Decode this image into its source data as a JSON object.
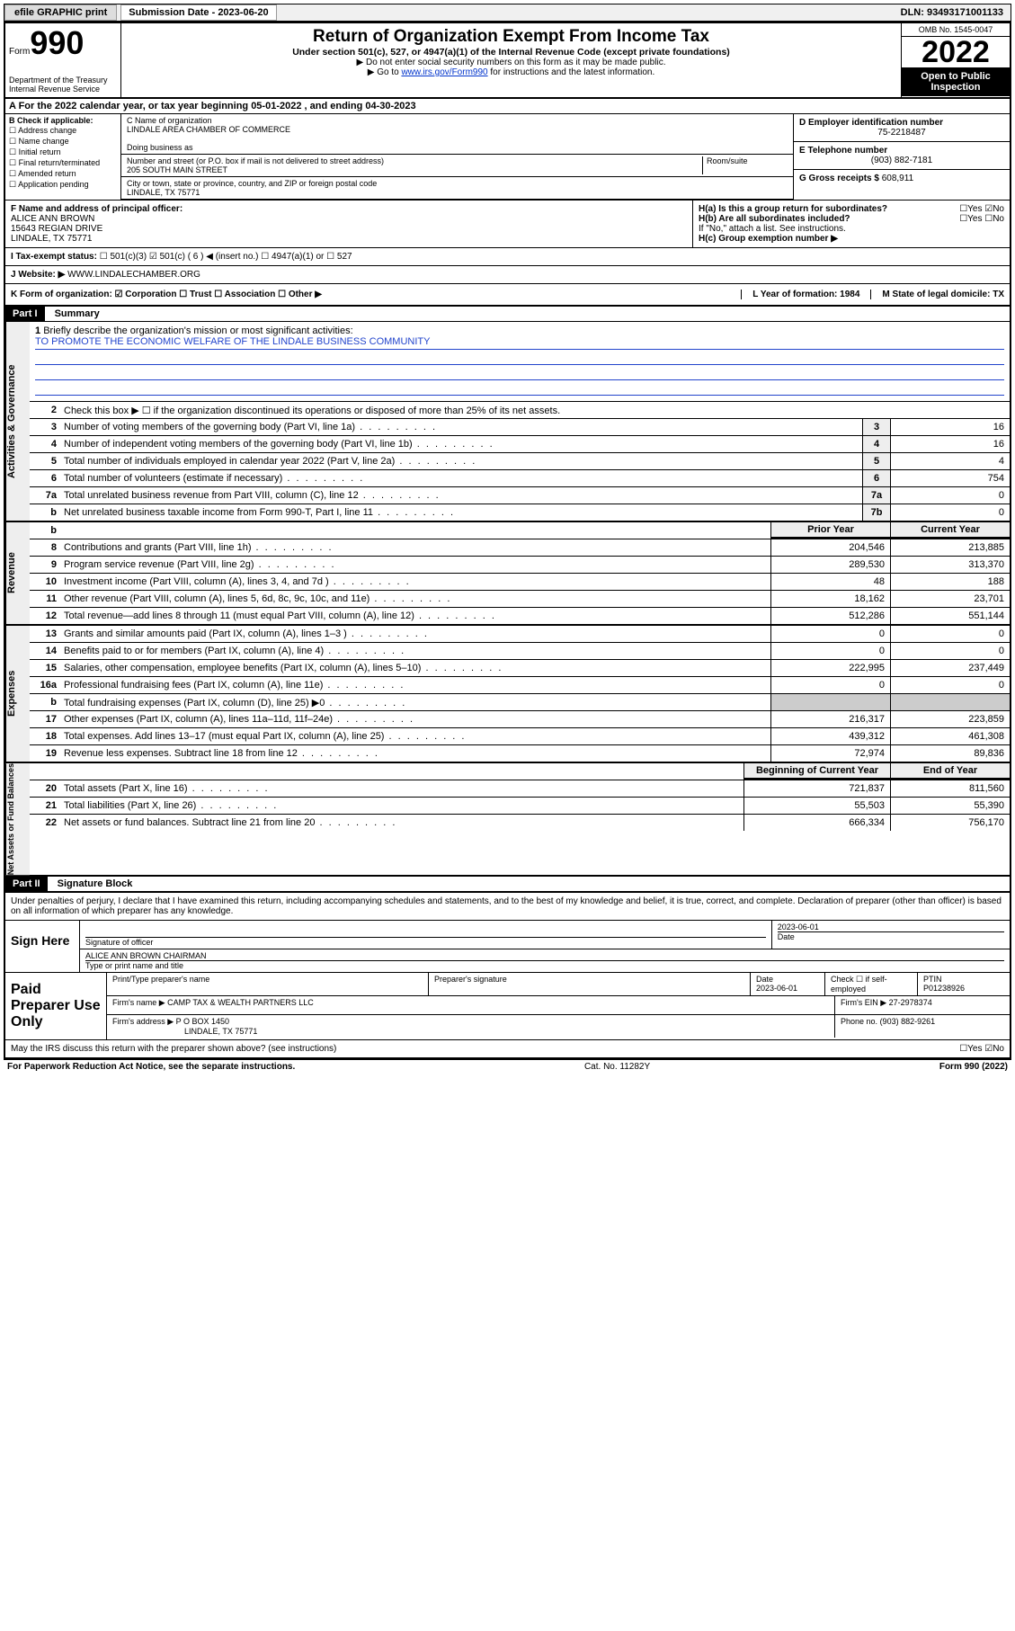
{
  "topbar": {
    "efile": "efile GRAPHIC print",
    "sub_label": "Submission Date - 2023-06-20",
    "dln": "DLN: 93493171001133"
  },
  "header": {
    "form_prefix": "Form",
    "form_no": "990",
    "dept": "Department of the Treasury Internal Revenue Service",
    "title": "Return of Organization Exempt From Income Tax",
    "subtitle": "Under section 501(c), 527, or 4947(a)(1) of the Internal Revenue Code (except private foundations)",
    "instr1": "▶ Do not enter social security numbers on this form as it may be made public.",
    "instr2_pre": "▶ Go to ",
    "instr2_link": "www.irs.gov/Form990",
    "instr2_post": " for instructions and the latest information.",
    "omb": "OMB No. 1545-0047",
    "year": "2022",
    "open": "Open to Public Inspection"
  },
  "row_a": "A For the 2022 calendar year, or tax year beginning 05-01-2022   , and ending 04-30-2023",
  "b": {
    "hdr": "B Check if applicable:",
    "opts": [
      "Address change",
      "Name change",
      "Initial return",
      "Final return/terminated",
      "Amended return",
      "Application pending"
    ]
  },
  "c": {
    "name_lbl": "C Name of organization",
    "name": "LINDALE AREA CHAMBER OF COMMERCE",
    "dba_lbl": "Doing business as",
    "street_lbl": "Number and street (or P.O. box if mail is not delivered to street address)",
    "room_lbl": "Room/suite",
    "street": "205 SOUTH MAIN STREET",
    "city_lbl": "City or town, state or province, country, and ZIP or foreign postal code",
    "city": "LINDALE, TX  75771"
  },
  "d": {
    "lbl": "D Employer identification number",
    "val": "75-2218487"
  },
  "e": {
    "lbl": "E Telephone number",
    "val": "(903) 882-7181"
  },
  "g": {
    "lbl": "G Gross receipts $",
    "val": "608,911"
  },
  "f": {
    "lbl": "F Name and address of principal officer:",
    "name": "ALICE ANN BROWN",
    "addr1": "15643 REGIAN DRIVE",
    "addr2": "LINDALE, TX  75771"
  },
  "h": {
    "ha": "H(a)  Is this a group return for subordinates?",
    "ha_ans": "☐Yes ☑No",
    "hb": "H(b)  Are all subordinates included?",
    "hb_ans": "☐Yes ☐No",
    "hb_note": "If \"No,\" attach a list. See instructions.",
    "hc": "H(c)  Group exemption number ▶"
  },
  "i": {
    "lbl": "I    Tax-exempt status:",
    "opts": "☐ 501(c)(3)   ☑ 501(c) ( 6 ) ◀ (insert no.)   ☐ 4947(a)(1) or   ☐ 527"
  },
  "j": {
    "lbl": "J    Website: ▶",
    "val": "WWW.LINDALECHAMBER.ORG"
  },
  "k": {
    "lbl": "K Form of organization:  ☑ Corporation  ☐ Trust  ☐ Association  ☐ Other ▶",
    "l": "L Year of formation: 1984",
    "m": "M State of legal domicile: TX"
  },
  "part1": {
    "bar": "Part I",
    "title": "Summary"
  },
  "gov": {
    "label": "Activities & Governance",
    "l1_lbl": "Briefly describe the organization's mission or most significant activities:",
    "l1_val": "TO PROMOTE THE ECONOMIC WELFARE OF THE LINDALE BUSINESS COMMUNITY",
    "l2": "Check this box ▶ ☐  if the organization discontinued its operations or disposed of more than 25% of its net assets.",
    "rows": [
      {
        "n": "3",
        "d": "Number of voting members of the governing body (Part VI, line 1a)",
        "b": "3",
        "v": "16"
      },
      {
        "n": "4",
        "d": "Number of independent voting members of the governing body (Part VI, line 1b)",
        "b": "4",
        "v": "16"
      },
      {
        "n": "5",
        "d": "Total number of individuals employed in calendar year 2022 (Part V, line 2a)",
        "b": "5",
        "v": "4"
      },
      {
        "n": "6",
        "d": "Total number of volunteers (estimate if necessary)",
        "b": "6",
        "v": "754"
      },
      {
        "n": "7a",
        "d": "Total unrelated business revenue from Part VIII, column (C), line 12",
        "b": "7a",
        "v": "0"
      },
      {
        "n": "b",
        "d": "Net unrelated business taxable income from Form 990-T, Part I, line 11",
        "b": "7b",
        "v": "0"
      }
    ]
  },
  "rev": {
    "label": "Revenue",
    "hdr_prior": "Prior Year",
    "hdr_curr": "Current Year",
    "rows": [
      {
        "n": "8",
        "d": "Contributions and grants (Part VIII, line 1h)",
        "p": "204,546",
        "c": "213,885"
      },
      {
        "n": "9",
        "d": "Program service revenue (Part VIII, line 2g)",
        "p": "289,530",
        "c": "313,370"
      },
      {
        "n": "10",
        "d": "Investment income (Part VIII, column (A), lines 3, 4, and 7d )",
        "p": "48",
        "c": "188"
      },
      {
        "n": "11",
        "d": "Other revenue (Part VIII, column (A), lines 5, 6d, 8c, 9c, 10c, and 11e)",
        "p": "18,162",
        "c": "23,701"
      },
      {
        "n": "12",
        "d": "Total revenue—add lines 8 through 11 (must equal Part VIII, column (A), line 12)",
        "p": "512,286",
        "c": "551,144"
      }
    ]
  },
  "exp": {
    "label": "Expenses",
    "rows": [
      {
        "n": "13",
        "d": "Grants and similar amounts paid (Part IX, column (A), lines 1–3 )",
        "p": "0",
        "c": "0"
      },
      {
        "n": "14",
        "d": "Benefits paid to or for members (Part IX, column (A), line 4)",
        "p": "0",
        "c": "0"
      },
      {
        "n": "15",
        "d": "Salaries, other compensation, employee benefits (Part IX, column (A), lines 5–10)",
        "p": "222,995",
        "c": "237,449"
      },
      {
        "n": "16a",
        "d": "Professional fundraising fees (Part IX, column (A), line 11e)",
        "p": "0",
        "c": "0"
      },
      {
        "n": "b",
        "d": "Total fundraising expenses (Part IX, column (D), line 25) ▶0",
        "p": "",
        "c": ""
      },
      {
        "n": "17",
        "d": "Other expenses (Part IX, column (A), lines 11a–11d, 11f–24e)",
        "p": "216,317",
        "c": "223,859"
      },
      {
        "n": "18",
        "d": "Total expenses. Add lines 13–17 (must equal Part IX, column (A), line 25)",
        "p": "439,312",
        "c": "461,308"
      },
      {
        "n": "19",
        "d": "Revenue less expenses. Subtract line 18 from line 12",
        "p": "72,974",
        "c": "89,836"
      }
    ]
  },
  "net": {
    "label": "Net Assets or Fund Balances",
    "hdr_beg": "Beginning of Current Year",
    "hdr_end": "End of Year",
    "rows": [
      {
        "n": "20",
        "d": "Total assets (Part X, line 16)",
        "p": "721,837",
        "c": "811,560"
      },
      {
        "n": "21",
        "d": "Total liabilities (Part X, line 26)",
        "p": "55,503",
        "c": "55,390"
      },
      {
        "n": "22",
        "d": "Net assets or fund balances. Subtract line 21 from line 20",
        "p": "666,334",
        "c": "756,170"
      }
    ]
  },
  "part2": {
    "bar": "Part II",
    "title": "Signature Block"
  },
  "sig": {
    "decl": "Under penalties of perjury, I declare that I have examined this return, including accompanying schedules and statements, and to the best of my knowledge and belief, it is true, correct, and complete. Declaration of preparer (other than officer) is based on all information of which preparer has any knowledge.",
    "here": "Sign Here",
    "sig_officer": "Signature of officer",
    "date": "2023-06-01",
    "date_lbl": "Date",
    "name": "ALICE ANN BROWN  CHAIRMAN",
    "name_lbl": "Type or print name and title"
  },
  "paid": {
    "label": "Paid Preparer Use Only",
    "h_name": "Print/Type preparer's name",
    "h_sig": "Preparer's signature",
    "h_date": "Date",
    "date": "2023-06-01",
    "h_self": "Check ☐ if self-employed",
    "h_ptin": "PTIN",
    "ptin": "P01238926",
    "firm_name_lbl": "Firm's name     ▶",
    "firm_name": "CAMP TAX & WEALTH PARTNERS LLC",
    "firm_ein_lbl": "Firm's EIN ▶",
    "firm_ein": "27-2978374",
    "firm_addr_lbl": "Firm's address ▶",
    "firm_addr1": "P O BOX 1450",
    "firm_addr2": "LINDALE, TX  75771",
    "phone_lbl": "Phone no.",
    "phone": "(903) 882-9261"
  },
  "discuss": {
    "q": "May the IRS discuss this return with the preparer shown above? (see instructions)",
    "a": "☐Yes  ☑No"
  },
  "footer": {
    "left": "For Paperwork Reduction Act Notice, see the separate instructions.",
    "mid": "Cat. No. 11282Y",
    "right": "Form 990 (2022)"
  }
}
